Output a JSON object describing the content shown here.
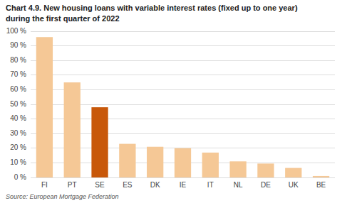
{
  "chart_data": {
    "type": "bar",
    "title": "Chart 4.9. New housing loans with variable interest rates (fixed up to one year)",
    "subtitle": "during the first quarter of 2022",
    "annotations": [
      "Source: European Mortgage Federation"
    ],
    "categories": [
      "FI",
      "PT",
      "SE",
      "ES",
      "DK",
      "IE",
      "IT",
      "NL",
      "DE",
      "UK",
      "BE"
    ],
    "values": [
      96,
      65,
      48,
      23,
      21,
      20,
      17,
      11,
      9.5,
      6.5,
      1
    ],
    "colors": [
      "#F5C896",
      "#F5C896",
      "#C8580A",
      "#F5C896",
      "#F5C896",
      "#F5C896",
      "#F5C896",
      "#F5C896",
      "#F5C896",
      "#F5C896",
      "#F5C896"
    ],
    "ylim": [
      0,
      100
    ],
    "yticks": [
      {
        "value": 0,
        "label": "0 %"
      },
      {
        "value": 10,
        "label": "10 %"
      },
      {
        "value": 20,
        "label": "20 %"
      },
      {
        "value": 30,
        "label": "30 %"
      },
      {
        "value": 40,
        "label": "40 %"
      },
      {
        "value": 50,
        "label": "50 %"
      },
      {
        "value": 60,
        "label": "60 %"
      },
      {
        "value": 70,
        "label": "70 %"
      },
      {
        "value": 80,
        "label": "80 %"
      },
      {
        "value": 90,
        "label": "90 %"
      },
      {
        "value": 100,
        "label": "100 %"
      }
    ],
    "grid": true
  }
}
